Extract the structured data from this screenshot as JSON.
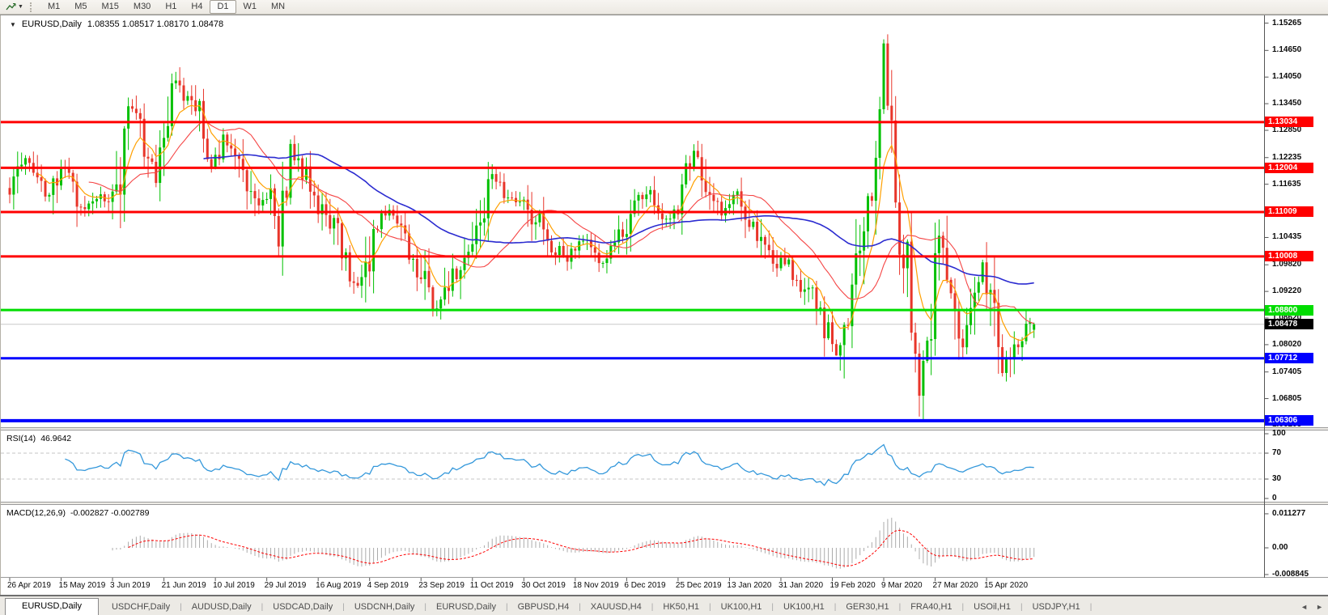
{
  "toolbar": {
    "timeframes": [
      "M1",
      "M5",
      "M15",
      "M30",
      "H1",
      "H4",
      "D1",
      "W1",
      "MN"
    ],
    "active": "D1"
  },
  "chart": {
    "title_symbol": "EURUSD,Daily",
    "ohlc": "1.08355 1.08517 1.08170 1.08478",
    "open": "1.08355",
    "high": "1.08517",
    "low": "1.08170",
    "close": "1.08478",
    "up_color": "#00C000",
    "down_color": "#E8352A",
    "ma_fast_color": "#FFA000",
    "ma_mid_color": "#F54545",
    "ma_slow_color": "#2B2BD0",
    "ma_periods": {
      "fast": 8,
      "mid": 21,
      "slow": 50
    },
    "bars": 260,
    "price_axis_ticks": [
      "1.15265",
      "1.14650",
      "1.14050",
      "1.13450",
      "1.12850",
      "1.12235",
      "1.11635",
      "1.10435",
      "1.09820",
      "1.09220",
      "1.08620",
      "1.08020",
      "1.07405",
      "1.06805",
      "1.06205"
    ],
    "hlines": [
      {
        "price": 1.13034,
        "label": "1.13034",
        "color": "#FF0000",
        "width": 3
      },
      {
        "price": 1.12004,
        "label": "1.12004",
        "color": "#FF0000",
        "width": 3
      },
      {
        "price": 1.11009,
        "label": "1.11009",
        "color": "#FF0000",
        "width": 3
      },
      {
        "price": 1.10008,
        "label": "1.10008",
        "color": "#FF0000",
        "width": 3
      },
      {
        "price": 1.088,
        "label": "1.08800",
        "color": "#00DD00",
        "width": 3
      },
      {
        "price": 1.07712,
        "label": "1.07712",
        "color": "#0000FF",
        "width": 3
      },
      {
        "price": 1.06306,
        "label": "1.06306",
        "color": "#0000FF",
        "width": 4
      }
    ],
    "bid": {
      "price": 1.08478,
      "label": "1.08478",
      "line_color": "#c9c9c9",
      "badge_bg": "#000000"
    },
    "price_path_anchors": [
      [
        0,
        1.1155
      ],
      [
        5,
        1.122
      ],
      [
        10,
        1.1135
      ],
      [
        13,
        1.1215
      ],
      [
        19,
        1.111
      ],
      [
        24,
        1.1135
      ],
      [
        27,
        1.112
      ],
      [
        30,
        1.134
      ],
      [
        33,
        1.128
      ],
      [
        37,
        1.119
      ],
      [
        41,
        1.14
      ],
      [
        44,
        1.136
      ],
      [
        46,
        1.138
      ],
      [
        51,
        1.1195
      ],
      [
        54,
        1.127
      ],
      [
        58,
        1.123
      ],
      [
        63,
        1.1115
      ],
      [
        66,
        1.1135
      ],
      [
        68,
        1.103
      ],
      [
        71,
        1.123
      ],
      [
        76,
        1.117
      ],
      [
        80,
        1.109
      ],
      [
        83,
        1.106
      ],
      [
        86,
        1.0975
      ],
      [
        88,
        1.093
      ],
      [
        92,
        1.103
      ],
      [
        96,
        1.11
      ],
      [
        101,
        1.101
      ],
      [
        105,
        1.095
      ],
      [
        108,
        1.0885
      ],
      [
        112,
        1.095
      ],
      [
        115,
        1.1
      ],
      [
        119,
        1.108
      ],
      [
        122,
        1.117
      ],
      [
        126,
        1.113
      ],
      [
        130,
        1.114
      ],
      [
        134,
        1.107
      ],
      [
        137,
        1.103
      ],
      [
        140,
        1.0995
      ],
      [
        145,
        1.1035
      ],
      [
        148,
        1.101
      ],
      [
        151,
        1.099
      ],
      [
        155,
        1.106
      ],
      [
        158,
        1.111
      ],
      [
        161,
        1.115
      ],
      [
        164,
        1.11
      ],
      [
        166,
        1.108
      ],
      [
        170,
        1.114
      ],
      [
        173,
        1.1225
      ],
      [
        176,
        1.116
      ],
      [
        180,
        1.1095
      ],
      [
        184,
        1.114
      ],
      [
        188,
        1.107
      ],
      [
        193,
        1.1
      ],
      [
        197,
        1.0975
      ],
      [
        200,
        1.0945
      ],
      [
        204,
        1.09
      ],
      [
        209,
        1.0785
      ],
      [
        212,
        1.087
      ],
      [
        215,
        1.103
      ],
      [
        218,
        1.114
      ],
      [
        221,
        1.146
      ],
      [
        223,
        1.128
      ],
      [
        224,
        1.11
      ],
      [
        227,
        1.099
      ],
      [
        230,
        1.0665
      ],
      [
        233,
        1.087
      ],
      [
        235,
        1.109
      ],
      [
        238,
        1.093
      ],
      [
        241,
        1.08
      ],
      [
        244,
        1.09
      ],
      [
        246,
        1.098
      ],
      [
        249,
        1.086
      ],
      [
        251,
        1.076
      ],
      [
        255,
        1.0815
      ],
      [
        259,
        1.0848
      ]
    ],
    "forced_bars": {
      "209": {
        "l": 1.0777
      },
      "221": {
        "h": 1.149
      },
      "230": {
        "l": 1.064
      },
      "259": {
        "o": 1.08355,
        "h": 1.08517,
        "l": 1.0817,
        "c": 1.08478
      }
    }
  },
  "rsi": {
    "label": "RSI(14)",
    "value": "46.9642",
    "period": 14,
    "ticks": [
      "100",
      "70",
      "30",
      "0"
    ],
    "levels": [
      70,
      30
    ],
    "color": "#3498DB"
  },
  "macd": {
    "label": "MACD(12,26,9)",
    "value": "-0.002827 -0.002789",
    "ticks": [
      "0.011277",
      "0.00",
      "-0.008845"
    ],
    "hist_color": "#ABABAB",
    "signal_color": "#FF0000"
  },
  "dates": [
    "26 Apr 2019",
    "15 May 2019",
    "3 Jun 2019",
    "21 Jun 2019",
    "10 Jul 2019",
    "29 Jul 2019",
    "16 Aug 2019",
    "4 Sep 2019",
    "23 Sep 2019",
    "11 Oct 2019",
    "30 Oct 2019",
    "18 Nov 2019",
    "6 Dec 2019",
    "25 Dec 2019",
    "13 Jan 2020",
    "31 Jan 2020",
    "19 Feb 2020",
    "9 Mar 2020",
    "27 Mar 2020",
    "15 Apr 2020"
  ],
  "tabs": {
    "items": [
      "EURUSD,Daily",
      "USDCHF,Daily",
      "AUDUSD,Daily",
      "USDCAD,Daily",
      "USDCNH,Daily",
      "EURUSD,Daily",
      "GBPUSD,H4",
      "XAUUSD,H4",
      "HK50,H1",
      "UK100,H1",
      "UK100,H1",
      "GER30,H1",
      "FRA40,H1",
      "USOil,H1",
      "USDJPY,H1"
    ],
    "active_index": 0,
    "scroll_left": "◄",
    "scroll_right": "►"
  },
  "chart_data": {
    "type": "candlestick",
    "symbol": "EURUSD",
    "timeframe": "Daily",
    "current_ohlc": {
      "open": 1.08355,
      "high": 1.08517,
      "low": 1.0817,
      "close": 1.08478
    },
    "horizontal_levels": [
      1.13034,
      1.12004,
      1.11009,
      1.10008,
      1.088,
      1.07712,
      1.06306
    ],
    "indicators": [
      {
        "name": "RSI",
        "params": [
          14
        ],
        "current": 46.9642,
        "range": [
          0,
          100
        ],
        "levels": [
          30,
          70
        ]
      },
      {
        "name": "MACD",
        "params": [
          12,
          26,
          9
        ],
        "current_main": -0.002827,
        "current_signal": -0.002789,
        "axis": [
          0.011277,
          0.0,
          -0.008845
        ]
      }
    ],
    "x_axis_dates": [
      "26 Apr 2019",
      "15 May 2019",
      "3 Jun 2019",
      "21 Jun 2019",
      "10 Jul 2019",
      "29 Jul 2019",
      "16 Aug 2019",
      "4 Sep 2019",
      "23 Sep 2019",
      "11 Oct 2019",
      "30 Oct 2019",
      "18 Nov 2019",
      "6 Dec 2019",
      "25 Dec 2019",
      "13 Jan 2020",
      "31 Jan 2020",
      "19 Feb 2020",
      "9 Mar 2020",
      "27 Mar 2020",
      "15 Apr 2020"
    ],
    "y_axis_range": [
      1.06177,
      1.15385
    ]
  }
}
